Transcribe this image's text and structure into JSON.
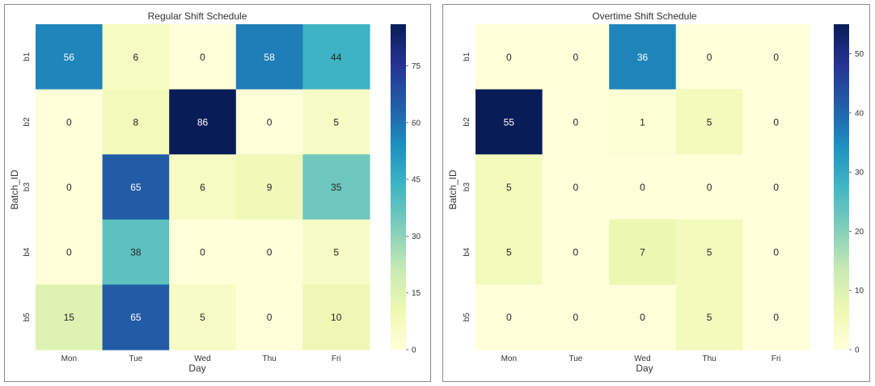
{
  "chart_data": [
    {
      "type": "heatmap",
      "title": "Regular Shift Schedule",
      "xlabel": "Day",
      "ylabel": "Batch_ID",
      "x": [
        "Mon",
        "Tue",
        "Wed",
        "Thu",
        "Fri"
      ],
      "y": [
        "b1",
        "b2",
        "b3",
        "b4",
        "b5"
      ],
      "values": [
        [
          56,
          6,
          0,
          58,
          44
        ],
        [
          0,
          8,
          86,
          0,
          5
        ],
        [
          0,
          65,
          6,
          9,
          35
        ],
        [
          0,
          38,
          0,
          0,
          5
        ],
        [
          15,
          65,
          5,
          0,
          10
        ]
      ],
      "vmin": 0,
      "vmax": 86,
      "colorbar_ticks": [
        "0",
        "15",
        "30",
        "45",
        "60",
        "75"
      ],
      "colormap": "YlGnBu"
    },
    {
      "type": "heatmap",
      "title": "Overtime Shift Schedule",
      "xlabel": "Day",
      "ylabel": "Batch_ID",
      "x": [
        "Mon",
        "Tue",
        "Wed",
        "Thu",
        "Fri"
      ],
      "y": [
        "b1",
        "b2",
        "b3",
        "b4",
        "b5"
      ],
      "values": [
        [
          0,
          0,
          36,
          0,
          0
        ],
        [
          55,
          0,
          1,
          5,
          0
        ],
        [
          5,
          0,
          0,
          0,
          0
        ],
        [
          5,
          0,
          7,
          5,
          0
        ],
        [
          0,
          0,
          0,
          5,
          0
        ]
      ],
      "vmin": 0,
      "vmax": 55,
      "colorbar_ticks": [
        "0",
        "10",
        "20",
        "30",
        "40",
        "50"
      ],
      "colormap": "YlGnBu"
    }
  ],
  "colormap_stops": [
    "#ffffd9",
    "#edf8b1",
    "#c7e9b4",
    "#7fcdbb",
    "#41b6c4",
    "#1d91c0",
    "#225ea8",
    "#253494",
    "#081d58"
  ]
}
